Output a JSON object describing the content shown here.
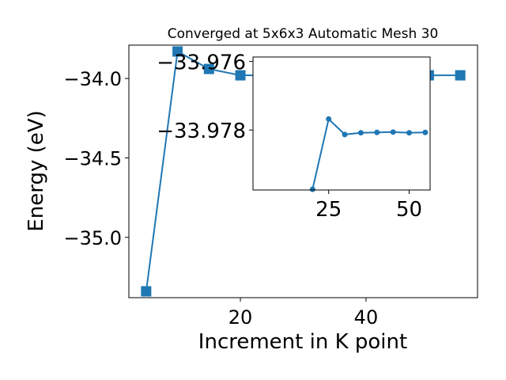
{
  "chart_data": [
    {
      "type": "line",
      "title": "Converged at 5x6x3 Automatic Mesh 30",
      "xlabel": "Increment in K point",
      "ylabel": "Energy (eV)",
      "xlim": [
        2.25,
        57.75
      ],
      "ylim": [
        -35.38,
        -33.79
      ],
      "xticks": [
        20,
        40
      ],
      "xtick_labels": [
        "20",
        "40"
      ],
      "yticks": [
        -34.0,
        -34.5,
        -35.0
      ],
      "ytick_labels": [
        "−34.0",
        "−34.5",
        "−35.0"
      ],
      "grid": false,
      "legend": "none",
      "series": [
        {
          "marker": "square",
          "color": "#1f77b4",
          "points": [
            {
              "x": 5,
              "y": -35.34
            },
            {
              "x": 10,
              "y": -33.83
            },
            {
              "x": 15,
              "y": -33.94
            },
            {
              "x": 20,
              "y": -33.98
            },
            {
              "x": 25,
              "y": -33.98
            },
            {
              "x": 30,
              "y": -33.98
            },
            {
              "x": 35,
              "y": -33.98
            },
            {
              "x": 40,
              "y": -33.98
            },
            {
              "x": 45,
              "y": -33.98
            },
            {
              "x": 50,
              "y": -33.98
            },
            {
              "x": 55,
              "y": -33.98
            }
          ]
        }
      ]
    },
    {
      "type": "line",
      "title": "",
      "inset": true,
      "xlim": [
        1.5,
        56.5
      ],
      "ylim": [
        -33.97975,
        -33.97587
      ],
      "xticks": [
        25,
        50
      ],
      "xtick_labels": [
        "25",
        "50"
      ],
      "yticks": [
        -33.978,
        -33.976
      ],
      "ytick_labels": [
        "−33.978",
        "−33.976"
      ],
      "grid": false,
      "legend": "none",
      "series": [
        {
          "marker": "circle",
          "color": "#1f77b4",
          "points": [
            {
              "x": 20,
              "y": -33.97973
            },
            {
              "x": 25,
              "y": -33.97768
            },
            {
              "x": 30,
              "y": -33.97813
            },
            {
              "x": 35,
              "y": -33.97808
            },
            {
              "x": 40,
              "y": -33.97807
            },
            {
              "x": 45,
              "y": -33.97806
            },
            {
              "x": 50,
              "y": -33.97808
            },
            {
              "x": 55,
              "y": -33.97807
            }
          ]
        }
      ]
    }
  ]
}
